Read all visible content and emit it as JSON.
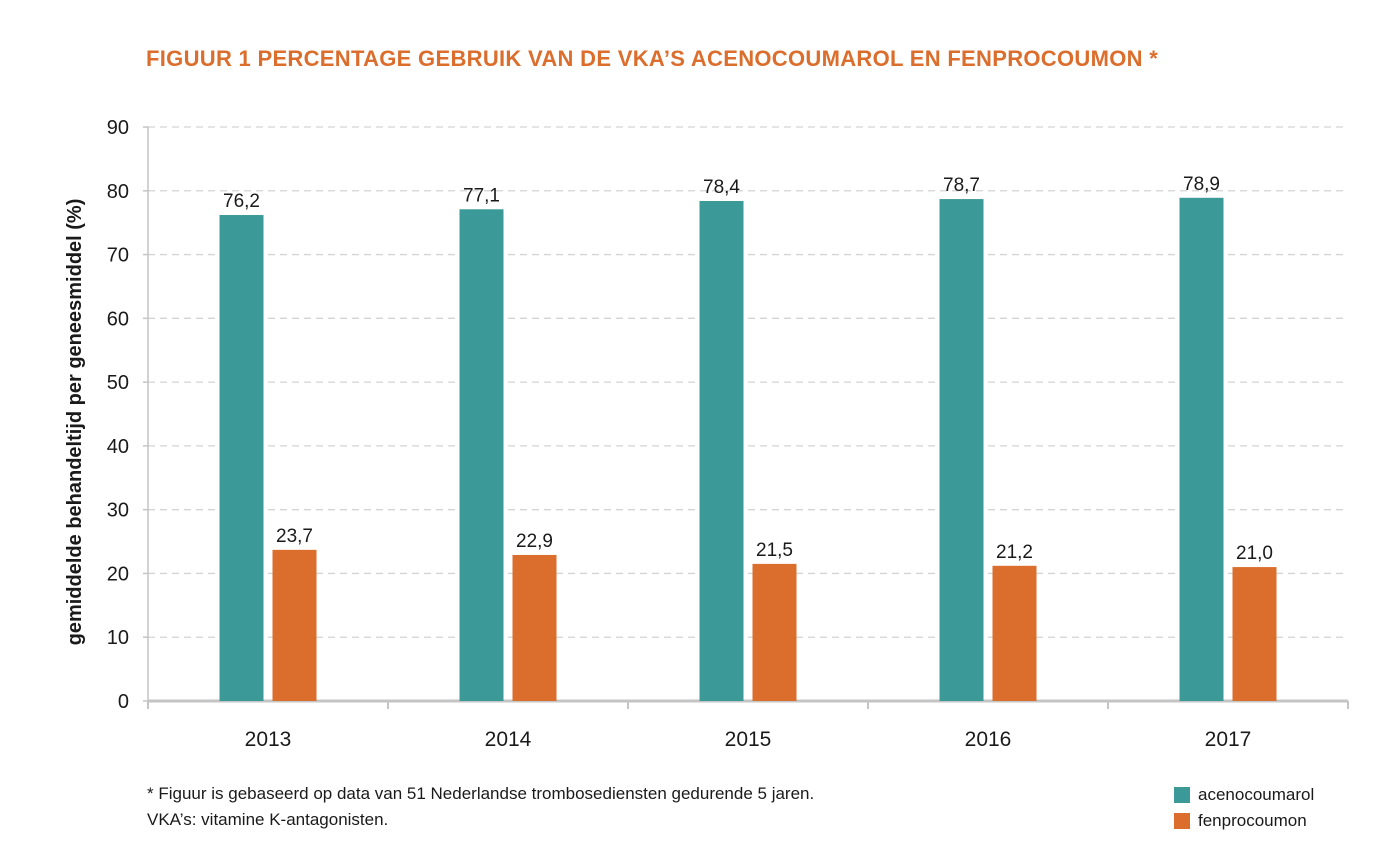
{
  "chart_data": {
    "type": "bar",
    "title": "FIGUUR 1  PERCENTAGE GEBRUIK VAN DE VKA’S ACENOCOUMAROL EN FENPROCOUMON *",
    "xlabel": "",
    "ylabel": "gemiddelde behandeltijd per geneesmiddel (%)",
    "ylim": [
      0,
      90
    ],
    "yticks": [
      0,
      10,
      20,
      30,
      40,
      50,
      60,
      70,
      80,
      90
    ],
    "grid": true,
    "legend_position": "bottom-right",
    "categories": [
      "2013",
      "2014",
      "2015",
      "2016",
      "2017"
    ],
    "series": [
      {
        "name": "acenocoumarol",
        "color": "#3b9a98",
        "values": [
          76.2,
          77.1,
          78.4,
          78.7,
          78.9
        ],
        "labels": [
          "76,2",
          "77,1",
          "78,4",
          "78,7",
          "78,9"
        ]
      },
      {
        "name": "fenprocoumon",
        "color": "#dc6e2d",
        "values": [
          23.7,
          22.9,
          21.5,
          21.2,
          21.0
        ],
        "labels": [
          "23,7",
          "22,9",
          "21,5",
          "21,2",
          "21,0"
        ]
      }
    ]
  },
  "footnotes": {
    "line1": "* Figuur is gebaseerd op data van 51 Nederlandse trombosediensten gedurende 5 jaren.",
    "line2": "VKA’s: vitamine K-antagonisten."
  },
  "colors": {
    "title": "#dc6e2d",
    "grid": "#d4d4d4",
    "axis": "#c4c4c4"
  }
}
